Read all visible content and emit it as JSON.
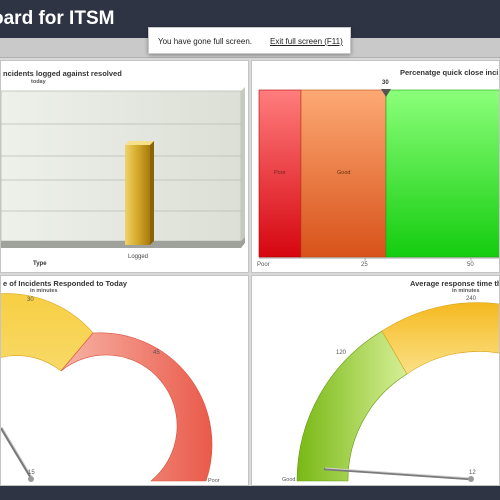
{
  "header": {
    "title": "oard for ITSM"
  },
  "fullscreen_notice": {
    "message": "You have gone full screen.",
    "exit_link": "Exit full screen (F11)"
  },
  "panels": {
    "bar_chart": {
      "title": "ncidents logged against resolved",
      "subtitle": "today",
      "category_label": "Logged",
      "axis_title": "Type"
    },
    "zone_chart": {
      "title": "Percenatge quick close inci",
      "marker_value": "30",
      "zone_labels": [
        "Poor",
        "Good"
      ],
      "ticks": [
        "Poor",
        "25",
        "50"
      ]
    },
    "gauge_left": {
      "title": "e of Incidents Responded to Today",
      "subtitle": "in minutes",
      "ticks": [
        "30",
        "45",
        "15",
        "Poor"
      ]
    },
    "gauge_right": {
      "title": "Average response time th",
      "subtitle": "in minutes",
      "ticks": [
        "120",
        "240",
        "Good",
        "12"
      ]
    }
  },
  "chart_data": [
    {
      "type": "bar",
      "title": "ncidents logged against resolved",
      "subtitle": "today",
      "categories": [
        "Logged"
      ],
      "xlabel": "Type",
      "notes": "only the Logged bar is visible in the cropped view"
    },
    {
      "type": "bar",
      "title": "Percenatge quick close inci",
      "bands": [
        {
          "label": "Poor",
          "from": 0,
          "to": 10,
          "color": "#e8141b"
        },
        {
          "label": "Good",
          "from": 10,
          "to": 30,
          "color": "#e8651c"
        },
        {
          "label": "",
          "from": 30,
          "to": 70,
          "color": "#22d11c"
        }
      ],
      "marker": 30,
      "xlim": [
        0,
        60
      ]
    },
    {
      "type": "gauge",
      "title": "e of Incidents Responded to Today",
      "subtitle": "in minutes",
      "tick_labels": [
        "15",
        "30",
        "45",
        "Poor"
      ],
      "bands": [
        {
          "color": "#f5c431"
        },
        {
          "color": "#ef6b5a"
        }
      ]
    },
    {
      "type": "gauge",
      "title": "Average response time th",
      "subtitle": "in minutes",
      "tick_labels": [
        "Good",
        "120",
        "240",
        "12"
      ],
      "bands": [
        {
          "color": "#78b814"
        },
        {
          "color": "#f5c431"
        }
      ]
    }
  ]
}
